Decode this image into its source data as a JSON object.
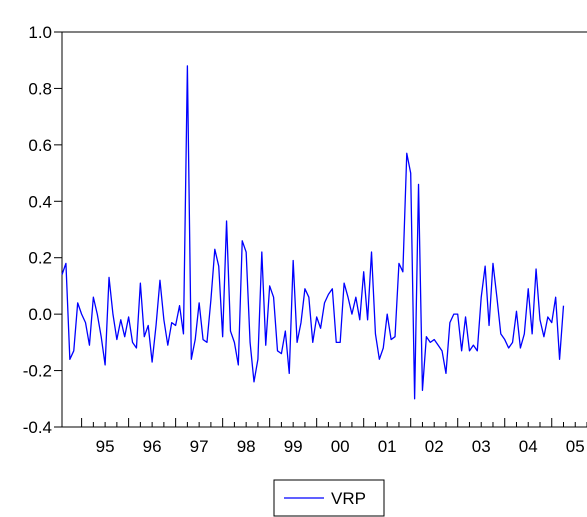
{
  "chart_data": {
    "type": "line",
    "title": "",
    "xlabel": "",
    "ylabel": "",
    "ylim": [
      -0.4,
      1.0
    ],
    "yticks": [
      "-0.4",
      "-0.2",
      "0.0",
      "0.2",
      "0.4",
      "0.6",
      "0.8",
      "1.0"
    ],
    "ytick_values": [
      -0.4,
      -0.2,
      0.0,
      0.2,
      0.4,
      0.6,
      0.8,
      1.0
    ],
    "xlim": [
      1994.583,
      2005.75
    ],
    "xticks": [
      "95",
      "96",
      "97",
      "98",
      "99",
      "00",
      "01",
      "02",
      "03",
      "04",
      "05"
    ],
    "grid": false,
    "legend_position": "bottom-center",
    "series": [
      {
        "name": "VRP",
        "color": "#0000ff",
        "start_year": 1994,
        "start_month": 8,
        "frequency": "monthly",
        "values": [
          0.14,
          0.18,
          -0.16,
          -0.13,
          0.04,
          0.0,
          -0.03,
          -0.11,
          0.06,
          0.0,
          -0.08,
          -0.18,
          0.13,
          0.0,
          -0.09,
          -0.02,
          -0.08,
          -0.01,
          -0.1,
          -0.12,
          0.11,
          -0.08,
          -0.04,
          -0.17,
          -0.04,
          0.12,
          -0.02,
          -0.11,
          -0.03,
          -0.04,
          0.03,
          -0.07,
          0.88,
          -0.16,
          -0.09,
          0.04,
          -0.09,
          -0.1,
          0.05,
          0.23,
          0.17,
          -0.08,
          0.33,
          -0.06,
          -0.1,
          -0.18,
          0.26,
          0.22,
          -0.1,
          -0.24,
          -0.16,
          0.22,
          -0.11,
          0.1,
          0.06,
          -0.13,
          -0.14,
          -0.06,
          -0.21,
          0.19,
          -0.1,
          -0.03,
          0.09,
          0.06,
          -0.1,
          -0.01,
          -0.05,
          0.04,
          0.07,
          0.09,
          -0.1,
          -0.1,
          0.11,
          0.06,
          0.0,
          0.06,
          -0.02,
          0.15,
          -0.02,
          0.22,
          -0.07,
          -0.16,
          -0.12,
          0.0,
          -0.09,
          -0.08,
          0.18,
          0.15,
          0.57,
          0.5,
          -0.3,
          0.46,
          -0.27,
          -0.08,
          -0.1,
          -0.09,
          -0.11,
          -0.13,
          -0.21,
          -0.03,
          0.0,
          0.0,
          -0.13,
          -0.01,
          -0.13,
          -0.11,
          -0.13,
          0.06,
          0.17,
          -0.04,
          0.18,
          0.06,
          -0.07,
          -0.09,
          -0.12,
          -0.1,
          0.01,
          -0.12,
          -0.07,
          0.09,
          -0.07,
          0.16,
          -0.02,
          -0.08,
          -0.01,
          -0.03,
          0.06,
          -0.16,
          0.03
        ]
      }
    ]
  }
}
